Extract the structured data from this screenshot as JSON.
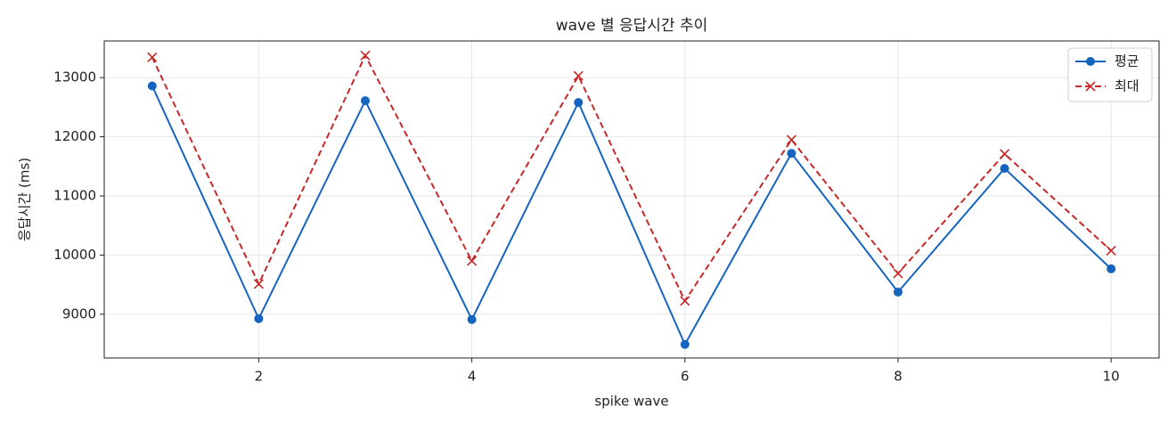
{
  "chart_data": {
    "type": "line",
    "title": "wave 별 응답시간 추이",
    "xlabel": "spike wave",
    "ylabel": "응답시간 (ms)",
    "x": [
      1,
      2,
      3,
      4,
      5,
      6,
      7,
      8,
      9,
      10
    ],
    "series": [
      {
        "name": "평균",
        "color": "#1565c0",
        "marker": "circle",
        "dashed": false,
        "values": [
          12860,
          8925,
          12610,
          8910,
          12580,
          8490,
          11720,
          9375,
          11465,
          9767
        ]
      },
      {
        "name": "최대",
        "color": "#c62828",
        "marker": "x",
        "dashed": true,
        "values": [
          13345,
          9510,
          13375,
          9900,
          13030,
          9225,
          11950,
          9690,
          11710,
          10075
        ]
      }
    ],
    "xlim": [
      0.55,
      10.45
    ],
    "xticks": [
      2,
      4,
      6,
      8,
      10
    ],
    "ylim": [
      8260,
      13620
    ],
    "yticks": [
      9000,
      10000,
      11000,
      12000,
      13000
    ],
    "grid": true,
    "legend": "upper right"
  }
}
